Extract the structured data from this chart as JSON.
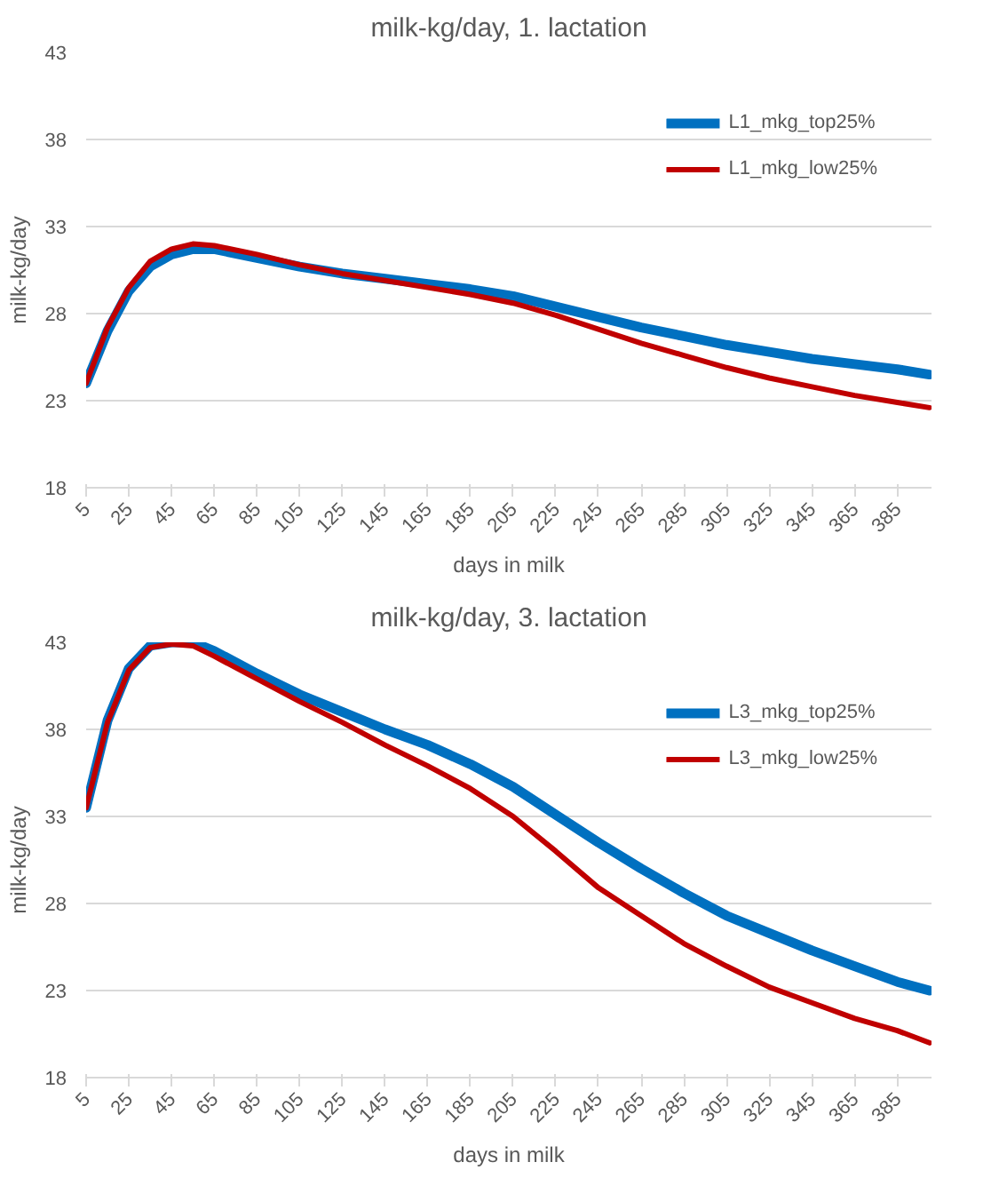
{
  "chart_data": [
    {
      "type": "line",
      "title": "milk-kg/day, 1. lactation",
      "xlabel": "days in milk",
      "ylabel": "milk-kg/day",
      "x": [
        5,
        15,
        25,
        35,
        45,
        55,
        65,
        85,
        105,
        125,
        145,
        165,
        185,
        205,
        225,
        245,
        265,
        285,
        305,
        325,
        345,
        365,
        385,
        400
      ],
      "series": [
        {
          "name": "L1_mkg_top25%",
          "color": "#0070c0",
          "values": [
            24.0,
            27.0,
            29.3,
            30.7,
            31.4,
            31.7,
            31.7,
            31.2,
            30.7,
            30.3,
            30.0,
            29.7,
            29.4,
            29.0,
            28.4,
            27.8,
            27.2,
            26.7,
            26.2,
            25.8,
            25.4,
            25.1,
            24.8,
            24.5
          ]
        },
        {
          "name": "L1_mkg_low25%",
          "color": "#c00000",
          "values": [
            24.0,
            27.2,
            29.5,
            31.0,
            31.7,
            32.0,
            31.9,
            31.4,
            30.8,
            30.3,
            29.9,
            29.5,
            29.1,
            28.6,
            27.9,
            27.1,
            26.3,
            25.6,
            24.9,
            24.3,
            23.8,
            23.3,
            22.9,
            22.6
          ]
        }
      ],
      "xlim": [
        5,
        401
      ],
      "xticks": [
        5,
        25,
        45,
        65,
        85,
        105,
        125,
        145,
        165,
        185,
        205,
        225,
        245,
        265,
        285,
        305,
        325,
        345,
        365,
        385
      ],
      "ylim": [
        18,
        43
      ],
      "yticks": [
        18,
        23,
        28,
        33,
        38,
        43
      ],
      "grid": "y",
      "legend": "top right",
      "line_style": "solid"
    },
    {
      "type": "line",
      "title": "milk-kg/day, 3. lactation",
      "xlabel": "days in milk",
      "ylabel": "milk-kg/day",
      "x": [
        5,
        15,
        25,
        35,
        45,
        55,
        65,
        85,
        105,
        125,
        145,
        165,
        185,
        205,
        225,
        245,
        265,
        285,
        305,
        325,
        345,
        365,
        385,
        400
      ],
      "series": [
        {
          "name": "L3_mkg_top25%",
          "color": "#0070c0",
          "values": [
            33.5,
            38.5,
            41.5,
            42.8,
            43.0,
            43.0,
            42.5,
            41.2,
            40.0,
            39.0,
            38.0,
            37.1,
            36.0,
            34.7,
            33.1,
            31.5,
            30.0,
            28.6,
            27.3,
            26.3,
            25.3,
            24.4,
            23.5,
            23.0
          ]
        },
        {
          "name": "L3_mkg_low25%",
          "color": "#c00000",
          "values": [
            33.5,
            38.4,
            41.4,
            42.7,
            42.9,
            42.8,
            42.2,
            40.9,
            39.6,
            38.4,
            37.1,
            35.9,
            34.6,
            33.0,
            31.0,
            28.9,
            27.3,
            25.7,
            24.4,
            23.2,
            22.3,
            21.4,
            20.7,
            20.0
          ]
        }
      ],
      "xlim": [
        5,
        401
      ],
      "xticks": [
        5,
        25,
        45,
        65,
        85,
        105,
        125,
        145,
        165,
        185,
        205,
        225,
        245,
        265,
        285,
        305,
        325,
        345,
        365,
        385
      ],
      "ylim": [
        18,
        43
      ],
      "yticks": [
        18,
        23,
        28,
        33,
        38,
        43
      ],
      "grid": "y",
      "legend": "top right",
      "line_style": "solid"
    }
  ]
}
